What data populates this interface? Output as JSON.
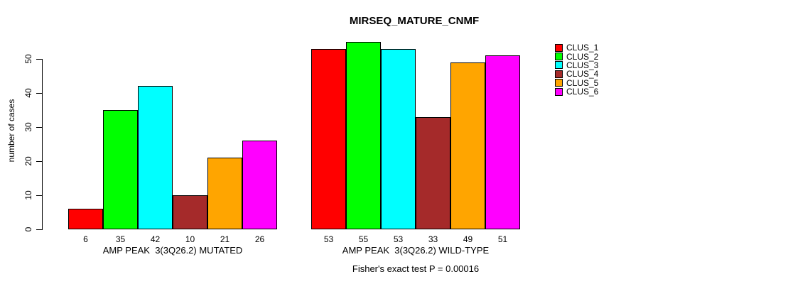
{
  "chart_data": {
    "type": "bar",
    "title": "MIRSEQ_MATURE_CNMF",
    "ylabel": "number of cases",
    "ylim": [
      0,
      55
    ],
    "yticks": [
      0,
      10,
      20,
      30,
      40,
      50
    ],
    "grid": false,
    "legend_position": "right",
    "legend": [
      {
        "name": "CLUS_1",
        "color": "#FF0000"
      },
      {
        "name": "CLUS_2",
        "color": "#00FF00"
      },
      {
        "name": "CLUS_3",
        "color": "#00FFFF"
      },
      {
        "name": "CLUS_4",
        "color": "#A52A2A"
      },
      {
        "name": "CLUS_5",
        "color": "#FFA500"
      },
      {
        "name": "CLUS_6",
        "color": "#FF00FF"
      }
    ],
    "groups": [
      {
        "label": "AMP PEAK  3(3Q26.2) MUTATED",
        "values": [
          6,
          35,
          42,
          10,
          21,
          26
        ]
      },
      {
        "label": "AMP PEAK  3(3Q26.2) WILD-TYPE",
        "values": [
          53,
          55,
          53,
          33,
          49,
          51
        ]
      }
    ],
    "annotation": "Fisher's exact test P = 0.00016"
  }
}
